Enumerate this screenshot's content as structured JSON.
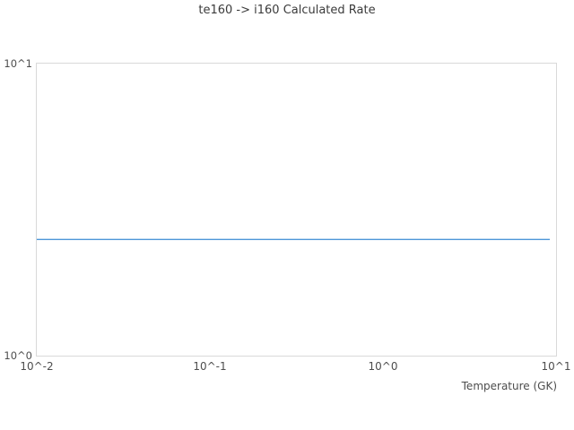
{
  "chart_data": {
    "type": "line",
    "title": "te160 -> i160 Calculated Rate",
    "xlabel": "Temperature (GK)",
    "ylabel": "",
    "x_scale": "log",
    "y_scale": "log",
    "xlim": [
      0.01,
      10
    ],
    "ylim": [
      1,
      10
    ],
    "x_tick_values": [
      0.01,
      0.1,
      1,
      10
    ],
    "x_tick_labels": [
      "10^-2",
      "10^-1",
      "10^0",
      "10^1"
    ],
    "y_tick_values": [
      1,
      10
    ],
    "y_tick_labels": [
      "10^0",
      "10^1"
    ],
    "grid": false,
    "legend": false,
    "series": [
      {
        "name": "calculated-rate",
        "color": "#4e97d8",
        "x": [
          0.01,
          9.2
        ],
        "y": [
          2.5,
          2.5
        ]
      }
    ]
  },
  "colors": {
    "background": "#ffffff",
    "plot_border": "#d9d9d9",
    "title_text": "#3b3b3b",
    "tick_text": "#4d4d4d"
  }
}
